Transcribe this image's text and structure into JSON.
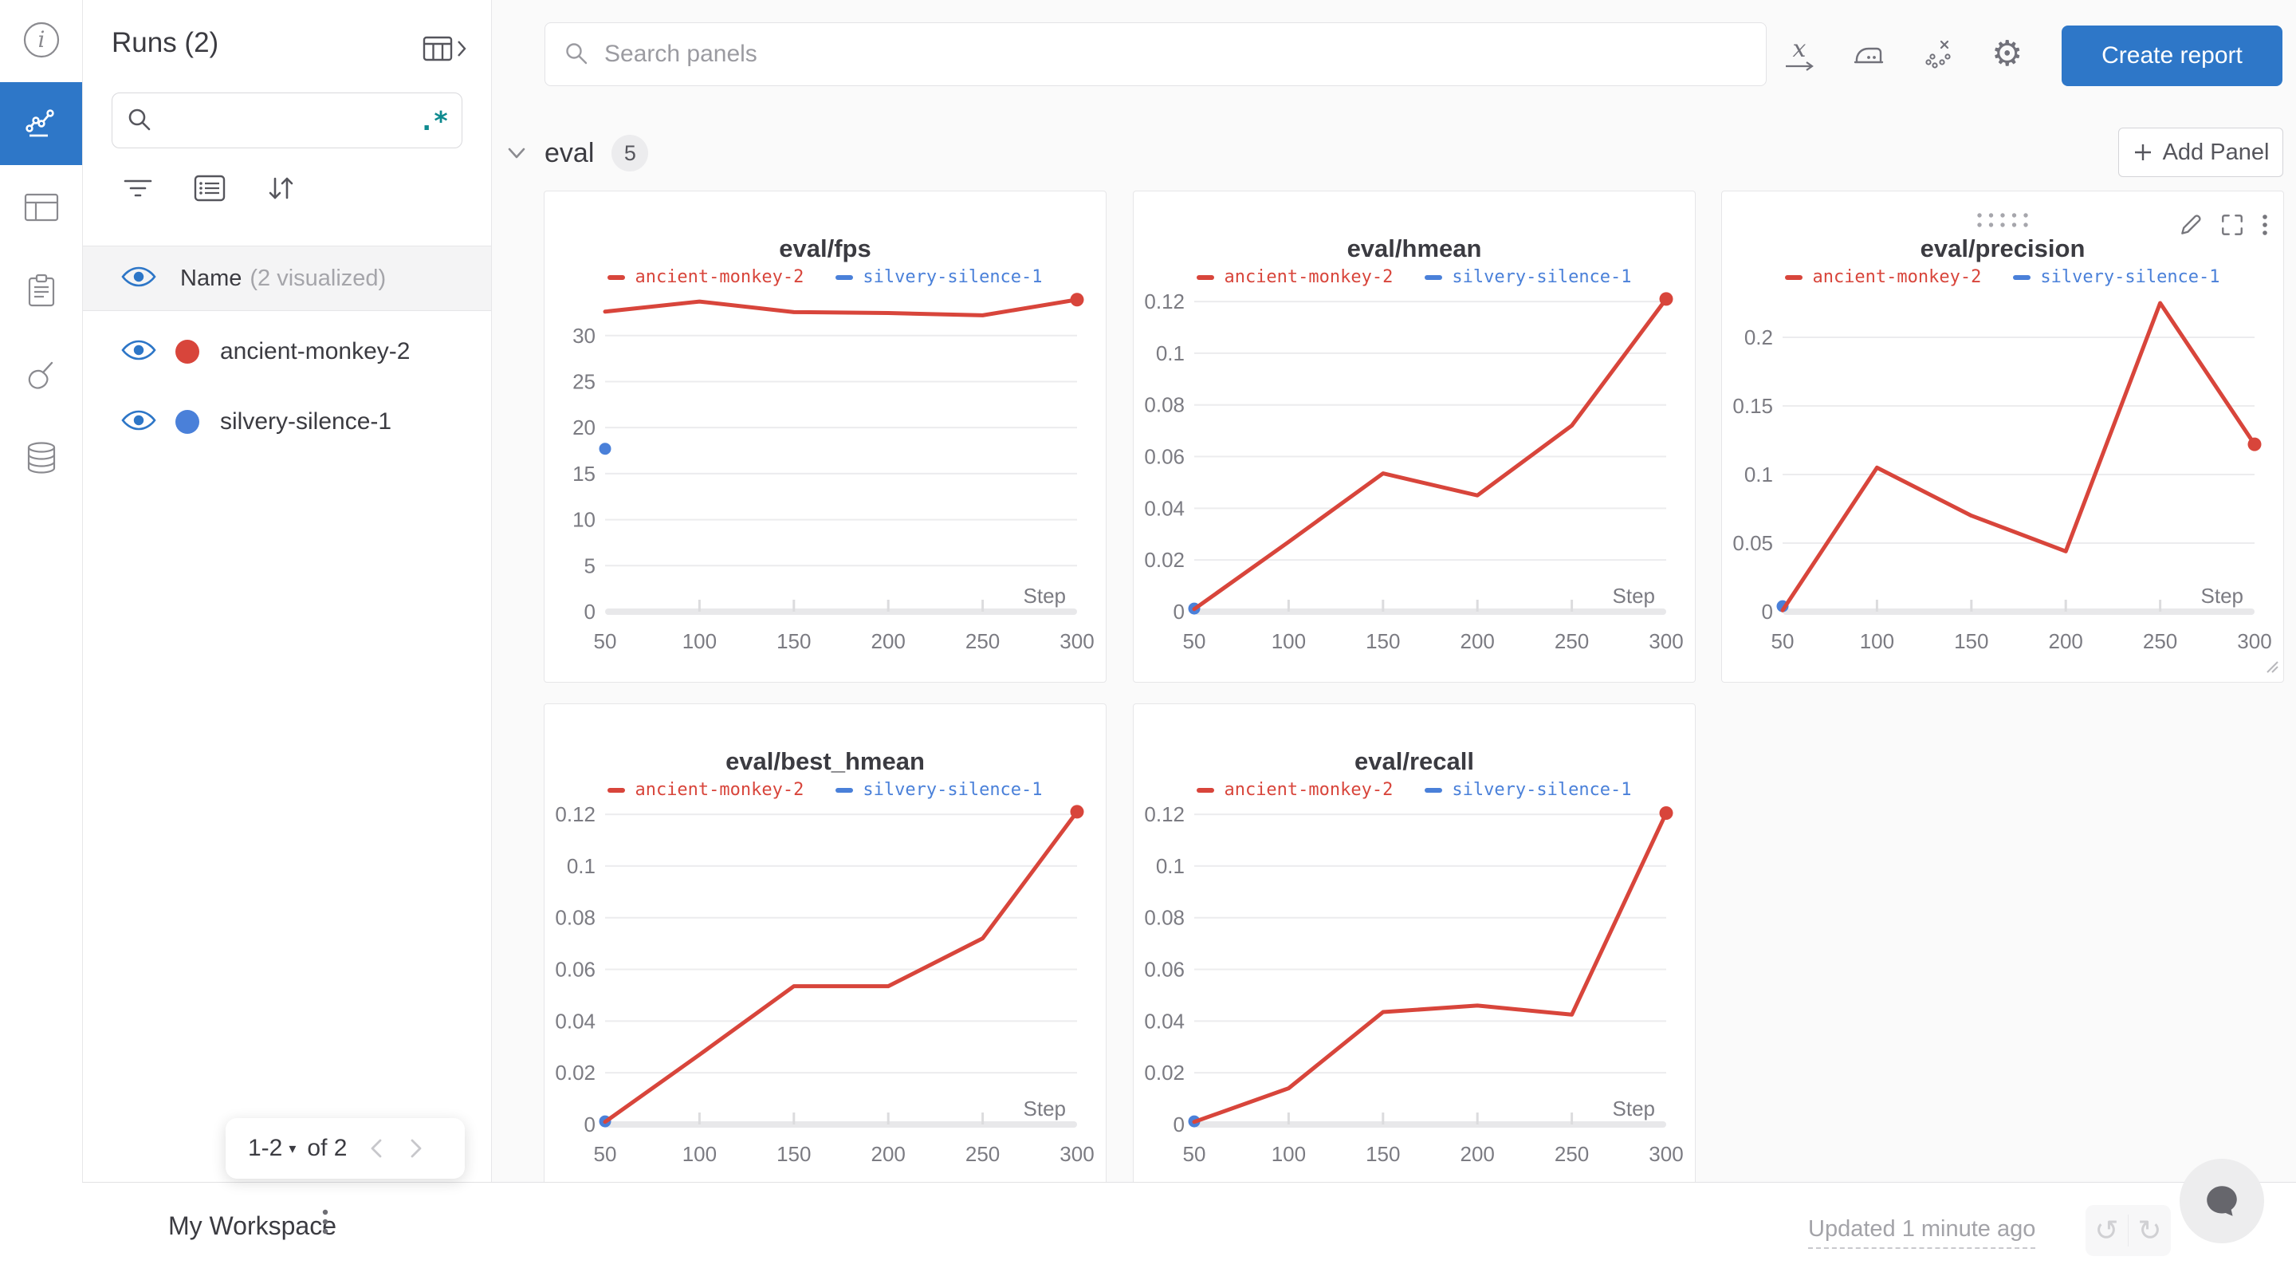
{
  "left_rail": {
    "icons": [
      "info-icon",
      "line-chart-icon",
      "table-icon",
      "clipboard-icon",
      "broom-icon",
      "database-icon"
    ],
    "active_icon": "line-chart-icon",
    "active_color": "#2e77c8"
  },
  "runs_panel": {
    "title": "Runs (2)",
    "search": {
      "placeholder": "",
      "regex_icon": ".*"
    },
    "toolbar_icons": [
      "filter-icon",
      "list-icon",
      "sort-icon"
    ],
    "header_row": {
      "label": "Name",
      "note": "(2 visualized)"
    },
    "runs": [
      {
        "name": "ancient-monkey-2",
        "color": "#d8453b"
      },
      {
        "name": "silvery-silence-1",
        "color": "#4a80d9"
      }
    ],
    "pagination": {
      "range": "1-2",
      "of_label": "of 2"
    }
  },
  "topbar": {
    "search_placeholder": "Search panels",
    "icons": [
      "x-axis-icon",
      "smoothing-iron-icon",
      "outliers-icon",
      "gear-icon"
    ],
    "create_report_label": "Create report"
  },
  "section": {
    "title": "eval",
    "panel_count": "5",
    "add_panel_label": "Add Panel"
  },
  "footer": {
    "workspace_label": "My Workspace",
    "updated_label": "Updated 1 minute ago"
  },
  "colors": {
    "accent_blue": "#2e77c8",
    "run_red": "#d8453b",
    "run_blue": "#4a80d9",
    "eye_blue": "#2d76c7",
    "regex_teal": "#0e8a8f",
    "grid": "#ececee",
    "axis_text": "#7b7b82"
  },
  "chart_data": [
    {
      "type": "line",
      "title": "eval/fps",
      "xlabel": "Step",
      "x": [
        50,
        100,
        150,
        200,
        250,
        300
      ],
      "xtick_labels": [
        "50",
        "100",
        "150",
        "200",
        "250",
        "300"
      ],
      "ytick_values": [
        0,
        5,
        10,
        15,
        20,
        25,
        30
      ],
      "ytick_labels": [
        "0",
        "5",
        "10",
        "15",
        "20",
        "25",
        "30"
      ],
      "ymax": 34.4,
      "series": [
        {
          "name": "ancient-monkey-2",
          "color": "#d8453b",
          "values": [
            32.6,
            33.7,
            32.55,
            32.45,
            32.2,
            33.9
          ],
          "end_dot": true
        },
        {
          "name": "silvery-silence-1",
          "color": "#4a80d9",
          "values": [
            17.7
          ],
          "point_only": true
        }
      ],
      "hovered": false
    },
    {
      "type": "line",
      "title": "eval/hmean",
      "xlabel": "Step",
      "x": [
        50,
        100,
        150,
        200,
        250,
        300
      ],
      "xtick_labels": [
        "50",
        "100",
        "150",
        "200",
        "250",
        "300"
      ],
      "ytick_values": [
        0,
        0.02,
        0.04,
        0.06,
        0.08,
        0.1,
        0.12
      ],
      "ytick_labels": [
        "0",
        "0.02",
        "0.04",
        "0.06",
        "0.08",
        "0.1",
        "0.12"
      ],
      "ymax": 0.1225,
      "series": [
        {
          "name": "ancient-monkey-2",
          "color": "#d8453b",
          "values": [
            0.001,
            0.027,
            0.0535,
            0.045,
            0.072,
            0.121
          ],
          "end_dot": true
        },
        {
          "name": "silvery-silence-1",
          "color": "#4a80d9",
          "values": [
            0.0012
          ],
          "point_only": true
        }
      ],
      "hovered": false
    },
    {
      "type": "line",
      "title": "eval/precision",
      "xlabel": "Step",
      "x": [
        50,
        100,
        150,
        200,
        250,
        300
      ],
      "xtick_labels": [
        "50",
        "100",
        "150",
        "200",
        "250",
        "300"
      ],
      "ytick_values": [
        0,
        0.05,
        0.1,
        0.15,
        0.2
      ],
      "ytick_labels": [
        "0",
        "0.05",
        "0.1",
        "0.15",
        "0.2"
      ],
      "ymax": 0.2308,
      "series": [
        {
          "name": "ancient-monkey-2",
          "color": "#d8453b",
          "values": [
            0.001,
            0.105,
            0.07,
            0.044,
            0.225,
            0.122
          ],
          "end_dot": true
        },
        {
          "name": "silvery-silence-1",
          "color": "#4a80d9",
          "values": [
            0.004
          ],
          "point_only": true
        }
      ],
      "hovered": true
    },
    {
      "type": "line",
      "title": "eval/best_hmean",
      "xlabel": "Step",
      "x": [
        50,
        100,
        150,
        200,
        250,
        300
      ],
      "xtick_labels": [
        "50",
        "100",
        "150",
        "200",
        "250",
        "300"
      ],
      "ytick_values": [
        0,
        0.02,
        0.04,
        0.06,
        0.08,
        0.1,
        0.12
      ],
      "ytick_labels": [
        "0",
        "0.02",
        "0.04",
        "0.06",
        "0.08",
        "0.1",
        "0.12"
      ],
      "ymax": 0.1225,
      "series": [
        {
          "name": "ancient-monkey-2",
          "color": "#d8453b",
          "values": [
            0.001,
            0.027,
            0.0535,
            0.0535,
            0.072,
            0.121
          ],
          "end_dot": true
        },
        {
          "name": "silvery-silence-1",
          "color": "#4a80d9",
          "values": [
            0.0012
          ],
          "point_only": true
        }
      ],
      "hovered": false
    },
    {
      "type": "line",
      "title": "eval/recall",
      "xlabel": "Step",
      "x": [
        50,
        100,
        150,
        200,
        250,
        300
      ],
      "xtick_labels": [
        "50",
        "100",
        "150",
        "200",
        "250",
        "300"
      ],
      "ytick_values": [
        0,
        0.02,
        0.04,
        0.06,
        0.08,
        0.1,
        0.12
      ],
      "ytick_labels": [
        "0",
        "0.02",
        "0.04",
        "0.06",
        "0.08",
        "0.1",
        "0.12"
      ],
      "ymax": 0.1225,
      "series": [
        {
          "name": "ancient-monkey-2",
          "color": "#d8453b",
          "values": [
            0.001,
            0.014,
            0.0435,
            0.046,
            0.0425,
            0.1205
          ],
          "end_dot": true
        },
        {
          "name": "silvery-silence-1",
          "color": "#4a80d9",
          "values": [
            0.0012
          ],
          "point_only": true
        }
      ],
      "hovered": false
    }
  ]
}
